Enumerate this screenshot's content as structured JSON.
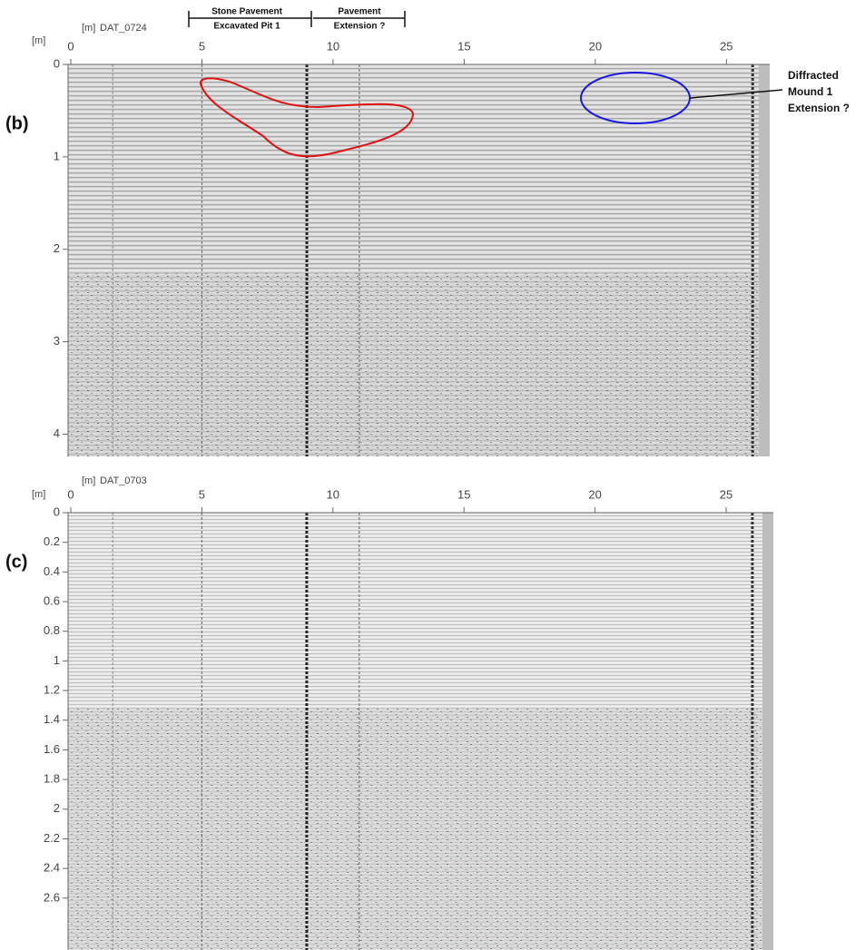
{
  "panels": [
    {
      "label": "(b)",
      "x_unit": "[m]",
      "y_unit": "[m]",
      "file": "DAT_0724",
      "xlim": [
        0,
        26.65
      ],
      "ylim": [
        0,
        4.24
      ],
      "xticks": [
        0,
        5,
        10,
        15,
        20,
        25
      ],
      "yticks": [
        0,
        1,
        2,
        3,
        4
      ]
    },
    {
      "label": "(c)",
      "x_unit": "[m]",
      "y_unit": "[m]",
      "file": "DAT_0703",
      "xlim": [
        0,
        26.8
      ],
      "ylim": [
        0,
        2.95
      ],
      "xticks": [
        0,
        5,
        10,
        15,
        20,
        25
      ],
      "yticks": [
        0,
        0.2,
        0.4,
        0.6,
        0.8,
        1,
        1.2,
        1.4,
        1.6,
        1.8,
        2,
        2.2,
        2.4,
        2.6
      ]
    }
  ],
  "annotations": [
    {
      "lines": [
        "Stone Pavement",
        "Excavated Pit 1"
      ]
    },
    {
      "lines": [
        "Pavement",
        "Extension ?"
      ]
    },
    {
      "lines": [
        "Diffracted",
        "Mound 1",
        "Extension ?"
      ]
    }
  ]
}
